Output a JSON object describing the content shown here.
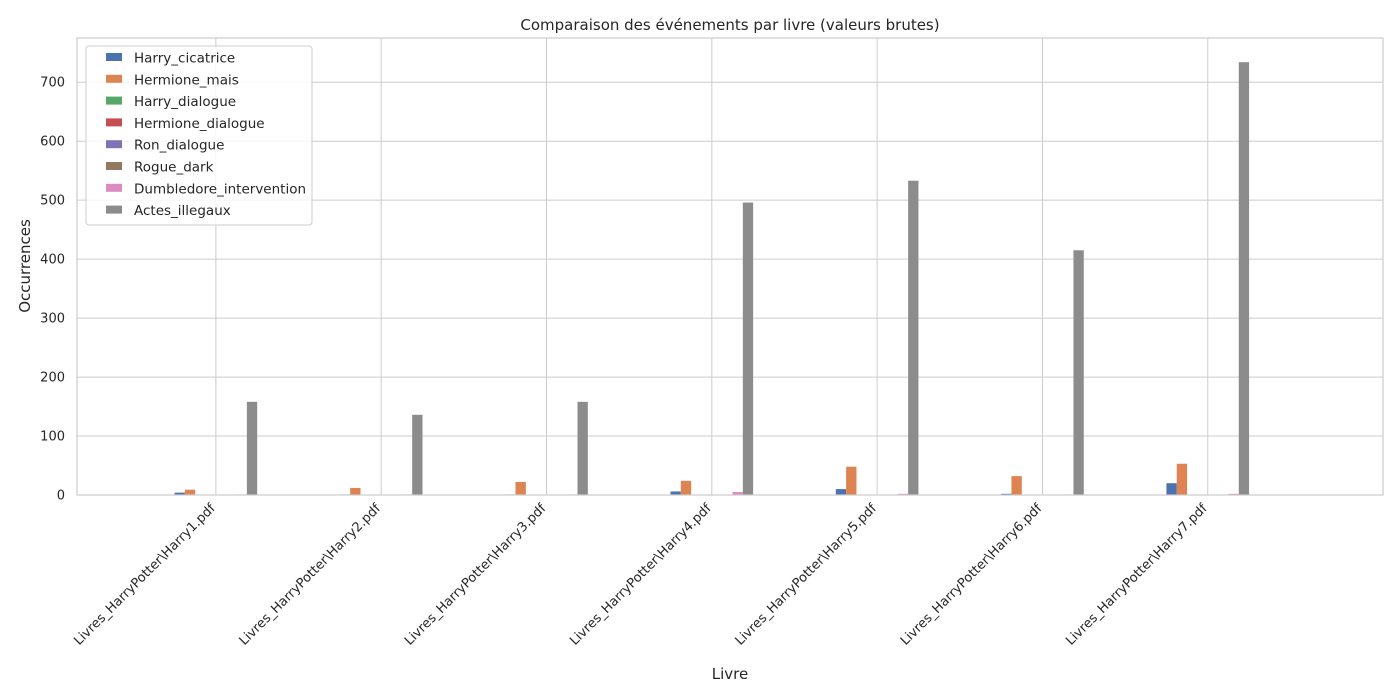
{
  "chart_data": {
    "type": "bar",
    "title": "Comparaison des événements par livre (valeurs brutes)",
    "xlabel": "Livre",
    "ylabel": "Occurrences",
    "ylim": [
      0,
      775
    ],
    "yticks": [
      0,
      100,
      200,
      300,
      400,
      500,
      600,
      700
    ],
    "grid": true,
    "legend_position": "top-left",
    "categories": [
      "Livres_HarryPotter\\Harry1.pdf",
      "Livres_HarryPotter\\Harry2.pdf",
      "Livres_HarryPotter\\Harry3.pdf",
      "Livres_HarryPotter\\Harry4.pdf",
      "Livres_HarryPotter\\Harry5.pdf",
      "Livres_HarryPotter\\Harry6.pdf",
      "Livres_HarryPotter\\Harry7.pdf"
    ],
    "series": [
      {
        "name": "Harry_cicatrice",
        "color": "#4c72b0",
        "values": [
          4,
          1,
          1,
          6,
          10,
          2,
          20
        ]
      },
      {
        "name": "Hermione_mais",
        "color": "#dd8452",
        "values": [
          9,
          12,
          22,
          24,
          48,
          32,
          53
        ]
      },
      {
        "name": "Harry_dialogue",
        "color": "#55a868",
        "values": [
          0,
          0,
          0,
          0,
          0,
          0,
          0
        ]
      },
      {
        "name": "Hermione_dialogue",
        "color": "#c44e52",
        "values": [
          0,
          0,
          0,
          0,
          0,
          0,
          0
        ]
      },
      {
        "name": "Ron_dialogue",
        "color": "#8172b3",
        "values": [
          0,
          0,
          0,
          0,
          0,
          0,
          0
        ]
      },
      {
        "name": "Rogue_dark",
        "color": "#937860",
        "values": [
          0,
          0,
          0,
          0,
          0,
          0,
          0
        ]
      },
      {
        "name": "Dumbledore_intervention",
        "color": "#da8bc3",
        "values": [
          1,
          1,
          1,
          5,
          2,
          1,
          2
        ]
      },
      {
        "name": "Actes_illegaux",
        "color": "#8c8c8c",
        "values": [
          158,
          136,
          158,
          496,
          533,
          415,
          734
        ]
      }
    ]
  }
}
